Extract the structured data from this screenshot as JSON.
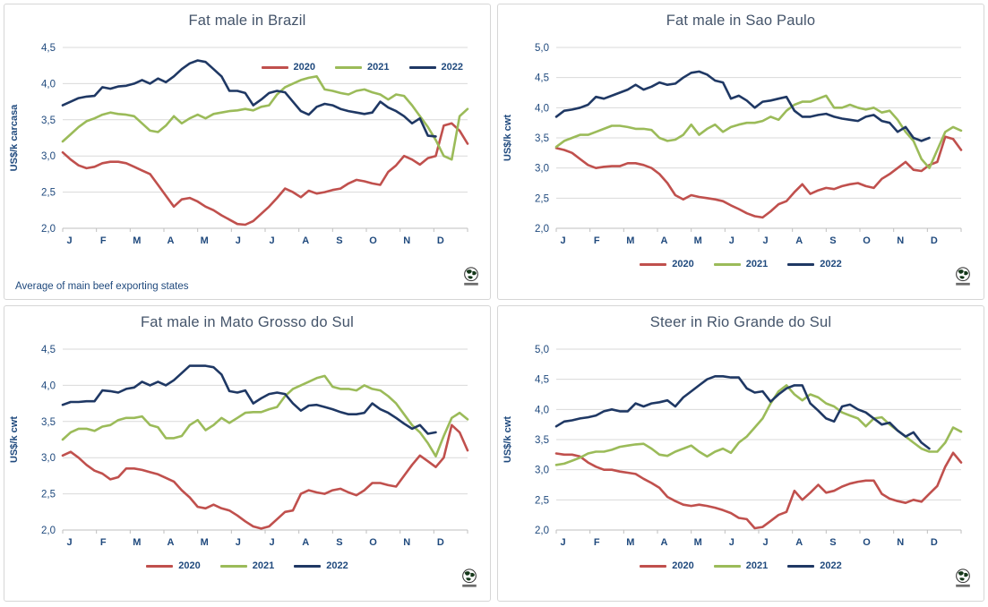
{
  "colors": {
    "red": "#C0504D",
    "green": "#9BBB59",
    "navy": "#1F3864",
    "grid": "#D9D9D9",
    "axis_line": "#BFBFBF",
    "axis_text": "#1F497D",
    "title_text": "#44546A",
    "panel_border": "#D6D6D6"
  },
  "legend": {
    "items": [
      {
        "label": "2020",
        "color": "red"
      },
      {
        "label": "2021",
        "color": "green"
      },
      {
        "label": "2022",
        "color": "navy"
      }
    ]
  },
  "footnote": "Average  of main beef exporting states",
  "logo": {
    "name": "globe-logo"
  },
  "chart_data": [
    {
      "type": "line",
      "title": "Fat male in Brazil",
      "ylabel": "US$/k carcasa",
      "ylim": [
        2.0,
        4.5
      ],
      "ytick_step": 0.5,
      "decimal_style": "comma",
      "grid": true,
      "legend_position": "top-right",
      "x_categories": [
        "J",
        "F",
        "M",
        "A",
        "M",
        "J",
        "J",
        "A",
        "S",
        "O",
        "N",
        "D"
      ],
      "series": [
        {
          "name": "2020",
          "color": "red",
          "values": [
            3.05,
            2.95,
            2.87,
            2.83,
            2.85,
            2.9,
            2.92,
            2.92,
            2.9,
            2.85,
            2.8,
            2.75,
            2.6,
            2.45,
            2.3,
            2.4,
            2.42,
            2.37,
            2.3,
            2.25,
            2.18,
            2.12,
            2.06,
            2.05,
            2.1,
            2.2,
            2.3,
            2.42,
            2.55,
            2.5,
            2.43,
            2.52,
            2.48,
            2.5,
            2.53,
            2.55,
            2.62,
            2.67,
            2.65,
            2.62,
            2.6,
            2.78,
            2.87,
            3.0,
            2.95,
            2.88,
            2.97,
            3.0,
            3.42,
            3.45,
            3.35,
            3.17
          ]
        },
        {
          "name": "2021",
          "color": "green",
          "values": [
            3.2,
            3.3,
            3.4,
            3.48,
            3.52,
            3.57,
            3.6,
            3.58,
            3.57,
            3.55,
            3.45,
            3.35,
            3.33,
            3.42,
            3.55,
            3.45,
            3.52,
            3.57,
            3.52,
            3.58,
            3.6,
            3.62,
            3.63,
            3.65,
            3.63,
            3.68,
            3.7,
            3.85,
            3.95,
            4.0,
            4.05,
            4.08,
            4.1,
            3.92,
            3.9,
            3.87,
            3.85,
            3.9,
            3.92,
            3.88,
            3.85,
            3.78,
            3.85,
            3.83,
            3.7,
            3.55,
            3.4,
            3.22,
            3.0,
            2.95,
            3.55,
            3.65
          ]
        },
        {
          "name": "2022",
          "color": "navy",
          "values": [
            3.7,
            3.75,
            3.8,
            3.82,
            3.83,
            3.95,
            3.93,
            3.96,
            3.97,
            4.0,
            4.05,
            4.0,
            4.07,
            4.02,
            4.1,
            4.2,
            4.28,
            4.32,
            4.3,
            4.2,
            4.1,
            3.9,
            3.9,
            3.87,
            3.7,
            3.78,
            3.87,
            3.9,
            3.88,
            3.75,
            3.62,
            3.57,
            3.68,
            3.72,
            3.7,
            3.65,
            3.62,
            3.6,
            3.58,
            3.6,
            3.75,
            3.67,
            3.62,
            3.55,
            3.45,
            3.52,
            3.28,
            3.27,
            null,
            null,
            null,
            null
          ]
        }
      ]
    },
    {
      "type": "line",
      "title": "Fat male in Sao Paulo",
      "ylabel": "US$/k cwt",
      "ylim": [
        2.0,
        5.0
      ],
      "ytick_step": 0.5,
      "decimal_style": "comma",
      "grid": true,
      "legend_position": "bottom",
      "x_categories": [
        "J",
        "F",
        "M",
        "A",
        "M",
        "J",
        "J",
        "A",
        "S",
        "O",
        "N",
        "D"
      ],
      "series": [
        {
          "name": "2020",
          "color": "red",
          "values": [
            3.33,
            3.3,
            3.25,
            3.15,
            3.05,
            3.0,
            3.02,
            3.03,
            3.03,
            3.08,
            3.08,
            3.05,
            3.0,
            2.9,
            2.75,
            2.55,
            2.48,
            2.55,
            2.52,
            2.5,
            2.48,
            2.45,
            2.38,
            2.32,
            2.25,
            2.2,
            2.18,
            2.28,
            2.4,
            2.45,
            2.6,
            2.73,
            2.57,
            2.63,
            2.67,
            2.65,
            2.7,
            2.73,
            2.75,
            2.7,
            2.67,
            2.82,
            2.9,
            3.0,
            3.1,
            2.97,
            2.95,
            3.05,
            3.1,
            3.52,
            3.48,
            3.3
          ]
        },
        {
          "name": "2021",
          "color": "green",
          "values": [
            3.35,
            3.45,
            3.5,
            3.55,
            3.55,
            3.6,
            3.65,
            3.7,
            3.7,
            3.68,
            3.65,
            3.65,
            3.63,
            3.5,
            3.45,
            3.47,
            3.55,
            3.72,
            3.55,
            3.65,
            3.72,
            3.6,
            3.68,
            3.72,
            3.75,
            3.75,
            3.78,
            3.85,
            3.8,
            3.95,
            4.05,
            4.1,
            4.1,
            4.15,
            4.2,
            4.0,
            4.0,
            4.05,
            4.0,
            3.97,
            4.0,
            3.92,
            3.95,
            3.8,
            3.6,
            3.45,
            3.15,
            3.0,
            3.3,
            3.6,
            3.68,
            3.62
          ]
        },
        {
          "name": "2022",
          "color": "navy",
          "values": [
            3.85,
            3.95,
            3.97,
            4.0,
            4.05,
            4.18,
            4.15,
            4.2,
            4.25,
            4.3,
            4.38,
            4.3,
            4.35,
            4.42,
            4.38,
            4.4,
            4.5,
            4.58,
            4.6,
            4.55,
            4.45,
            4.42,
            4.15,
            4.2,
            4.12,
            4.0,
            4.1,
            4.12,
            4.15,
            4.18,
            3.95,
            3.85,
            3.85,
            3.88,
            3.9,
            3.85,
            3.82,
            3.8,
            3.78,
            3.85,
            3.88,
            3.78,
            3.75,
            3.6,
            3.68,
            3.5,
            3.45,
            3.5,
            null,
            null,
            null,
            null
          ]
        }
      ]
    },
    {
      "type": "line",
      "title": "Fat male in Mato Grosso do Sul",
      "ylabel": "US$/k cwt",
      "ylim": [
        2.0,
        4.5
      ],
      "ytick_step": 0.5,
      "decimal_style": "comma",
      "grid": true,
      "legend_position": "bottom",
      "x_categories": [
        "J",
        "F",
        "M",
        "A",
        "M",
        "J",
        "J",
        "A",
        "S",
        "O",
        "N",
        "D"
      ],
      "series": [
        {
          "name": "2020",
          "color": "red",
          "values": [
            3.03,
            3.08,
            3.0,
            2.9,
            2.82,
            2.78,
            2.7,
            2.73,
            2.85,
            2.85,
            2.83,
            2.8,
            2.77,
            2.72,
            2.67,
            2.55,
            2.45,
            2.32,
            2.3,
            2.35,
            2.3,
            2.27,
            2.2,
            2.12,
            2.05,
            2.02,
            2.05,
            2.15,
            2.25,
            2.27,
            2.5,
            2.55,
            2.52,
            2.5,
            2.55,
            2.57,
            2.52,
            2.48,
            2.55,
            2.65,
            2.65,
            2.62,
            2.6,
            2.75,
            2.9,
            3.03,
            2.95,
            2.87,
            3.0,
            3.45,
            3.35,
            3.1
          ]
        },
        {
          "name": "2021",
          "color": "green",
          "values": [
            3.25,
            3.35,
            3.4,
            3.4,
            3.37,
            3.43,
            3.45,
            3.52,
            3.55,
            3.55,
            3.57,
            3.45,
            3.42,
            3.27,
            3.27,
            3.3,
            3.45,
            3.52,
            3.38,
            3.45,
            3.55,
            3.48,
            3.55,
            3.62,
            3.63,
            3.63,
            3.67,
            3.7,
            3.85,
            3.95,
            4.0,
            4.05,
            4.1,
            4.13,
            3.98,
            3.95,
            3.95,
            3.93,
            4.0,
            3.95,
            3.93,
            3.85,
            3.75,
            3.6,
            3.45,
            3.35,
            3.2,
            3.02,
            3.3,
            3.55,
            3.62,
            3.53
          ]
        },
        {
          "name": "2022",
          "color": "navy",
          "values": [
            3.73,
            3.77,
            3.77,
            3.78,
            3.78,
            3.93,
            3.92,
            3.9,
            3.95,
            3.97,
            4.05,
            4.0,
            4.05,
            4.0,
            4.07,
            4.17,
            4.27,
            4.27,
            4.27,
            4.25,
            4.15,
            3.92,
            3.9,
            3.93,
            3.75,
            3.82,
            3.88,
            3.9,
            3.88,
            3.75,
            3.65,
            3.72,
            3.73,
            3.7,
            3.67,
            3.63,
            3.6,
            3.6,
            3.62,
            3.75,
            3.67,
            3.62,
            3.55,
            3.47,
            3.4,
            3.45,
            3.33,
            3.35,
            null,
            null,
            null,
            null
          ]
        }
      ]
    },
    {
      "type": "line",
      "title": "Steer  in Rio Grande do Sul",
      "ylabel": "US$/k cwt",
      "ylim": [
        2.0,
        5.0
      ],
      "ytick_step": 0.5,
      "decimal_style": "comma",
      "grid": true,
      "legend_position": "bottom",
      "x_categories": [
        "J",
        "F",
        "M",
        "A",
        "M",
        "J",
        "J",
        "A",
        "S",
        "O",
        "N",
        "D"
      ],
      "series": [
        {
          "name": "2020",
          "color": "red",
          "values": [
            3.27,
            3.25,
            3.25,
            3.22,
            3.12,
            3.05,
            3.0,
            3.0,
            2.97,
            2.95,
            2.93,
            2.85,
            2.78,
            2.7,
            2.55,
            2.48,
            2.42,
            2.4,
            2.42,
            2.4,
            2.37,
            2.33,
            2.28,
            2.2,
            2.18,
            2.03,
            2.05,
            2.15,
            2.25,
            2.3,
            2.65,
            2.5,
            2.62,
            2.75,
            2.62,
            2.65,
            2.72,
            2.77,
            2.8,
            2.82,
            2.82,
            2.6,
            2.52,
            2.48,
            2.45,
            2.5,
            2.47,
            2.6,
            2.73,
            3.05,
            3.28,
            3.12
          ]
        },
        {
          "name": "2021",
          "color": "green",
          "values": [
            3.08,
            3.1,
            3.15,
            3.2,
            3.27,
            3.3,
            3.3,
            3.33,
            3.38,
            3.4,
            3.42,
            3.43,
            3.35,
            3.25,
            3.23,
            3.3,
            3.35,
            3.4,
            3.3,
            3.22,
            3.3,
            3.35,
            3.28,
            3.45,
            3.55,
            3.7,
            3.85,
            4.1,
            4.3,
            4.4,
            4.25,
            4.15,
            4.25,
            4.2,
            4.1,
            4.05,
            3.95,
            3.9,
            3.85,
            3.72,
            3.85,
            3.87,
            3.75,
            3.65,
            3.55,
            3.45,
            3.35,
            3.3,
            3.3,
            3.45,
            3.7,
            3.63
          ]
        },
        {
          "name": "2022",
          "color": "navy",
          "values": [
            3.72,
            3.8,
            3.82,
            3.85,
            3.87,
            3.9,
            3.97,
            4.0,
            3.97,
            3.97,
            4.1,
            4.05,
            4.1,
            4.12,
            4.15,
            4.05,
            4.2,
            4.3,
            4.4,
            4.5,
            4.55,
            4.55,
            4.53,
            4.53,
            4.35,
            4.28,
            4.3,
            4.13,
            4.25,
            4.35,
            4.4,
            4.4,
            4.1,
            3.98,
            3.85,
            3.8,
            4.05,
            4.08,
            4.0,
            3.95,
            3.85,
            3.75,
            3.78,
            3.65,
            3.55,
            3.62,
            3.45,
            3.35,
            null,
            null,
            null,
            null
          ]
        }
      ]
    }
  ]
}
